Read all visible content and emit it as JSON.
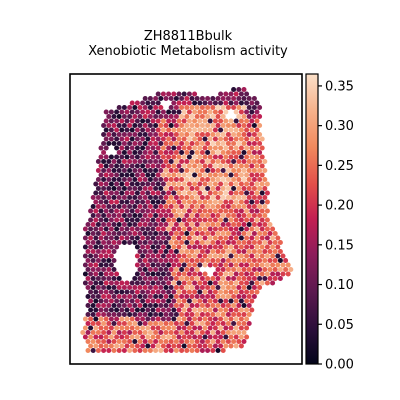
{
  "chart_data": {
    "type": "heatmap",
    "subtype": "spatial-hexbin",
    "title": "ZH8811Bbulk",
    "subtitle": "Xenobiotic Metabolism activity",
    "xlabel": "",
    "ylabel": "",
    "axis_ticks_visible": false,
    "grid": false,
    "colormap": "rocket",
    "colormap_stops": [
      "#03051a",
      "#2b0f3a",
      "#5c1a4f",
      "#8e1d5b",
      "#c21f52",
      "#e34f4a",
      "#f18a5e",
      "#f6b48e",
      "#fbe0c9"
    ],
    "colorbar": {
      "placement": "right",
      "vmin": 0.0,
      "vmax": 0.365,
      "ticks": [
        0.0,
        0.05,
        0.1,
        0.15,
        0.2,
        0.25,
        0.3,
        0.35
      ],
      "tick_labels": [
        "0.00",
        "0.05",
        "0.10",
        "0.15",
        "0.20",
        "0.25",
        "0.30",
        "0.35"
      ]
    },
    "regions_summary": [
      {
        "region": "left tissue band",
        "activity_level": 0.11
      },
      {
        "region": "right tissue area",
        "activity_level": 0.24
      },
      {
        "region": "bottom-left area",
        "activity_level": 0.23
      },
      {
        "region": "top edge",
        "activity_level": 0.12
      }
    ]
  }
}
